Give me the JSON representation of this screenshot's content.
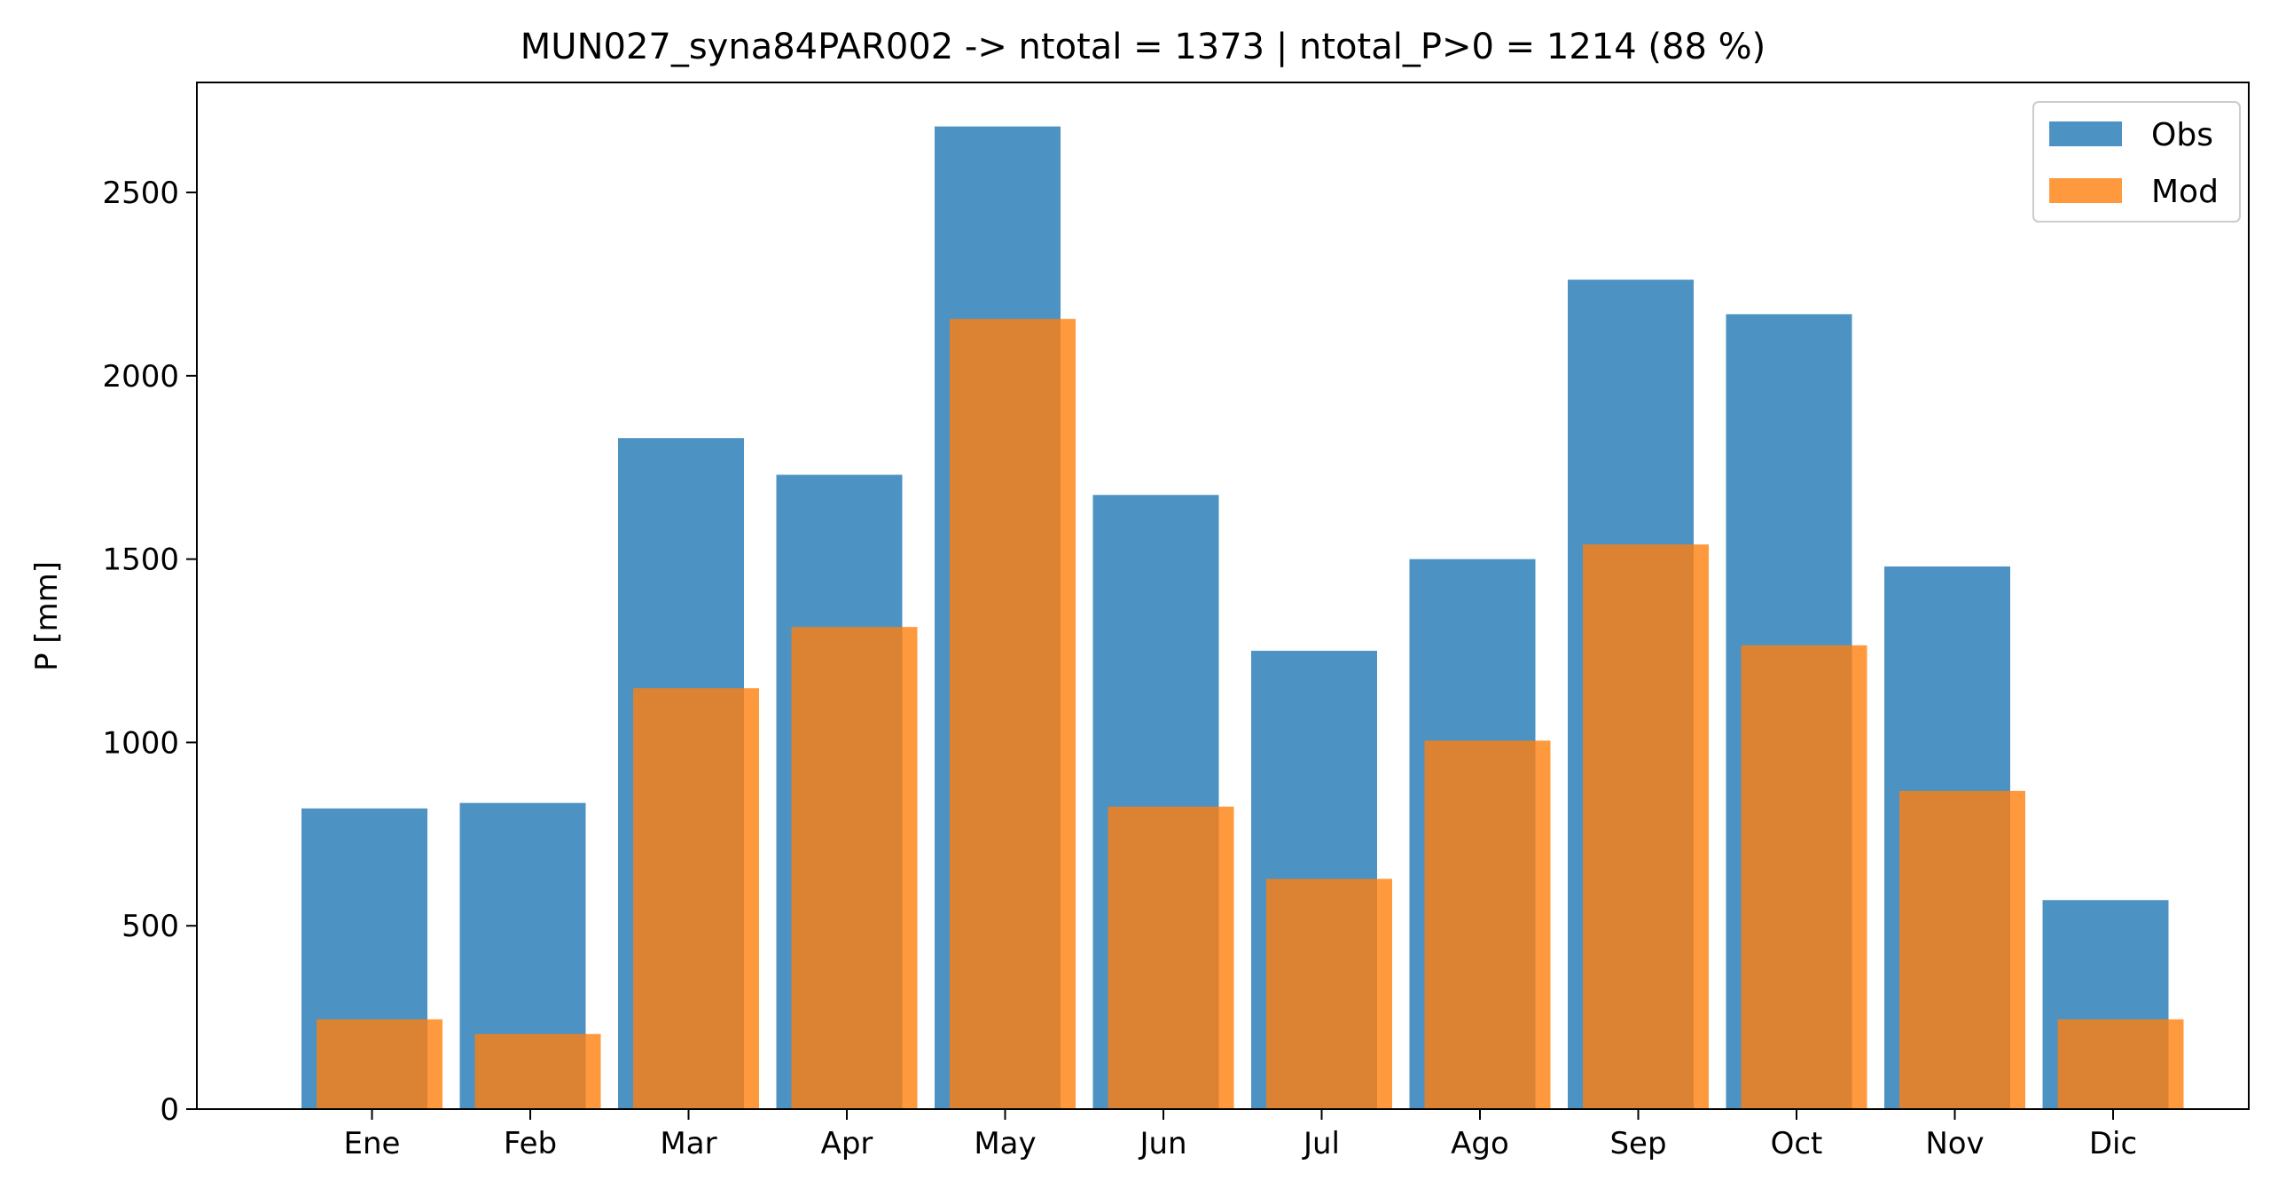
{
  "chart_data": {
    "type": "bar",
    "title": "MUN027_syna84PAR002 -> ntotal = 1373 | ntotal_P>0 = 1214 (88 %)",
    "xlabel": "",
    "ylabel": "P [mm]",
    "categories": [
      "Ene",
      "Feb",
      "Mar",
      "Apr",
      "May",
      "Jun",
      "Jul",
      "Ago",
      "Sep",
      "Oct",
      "Nov",
      "Dic"
    ],
    "series": [
      {
        "name": "Obs",
        "color": "#1f77b4",
        "values": [
          820,
          835,
          1830,
          1730,
          2680,
          1675,
          1250,
          1500,
          2262,
          2168,
          1480,
          570
        ]
      },
      {
        "name": "Mod",
        "color": "#ff7f0e",
        "values": [
          245,
          205,
          1148,
          1315,
          2155,
          825,
          628,
          1005,
          1540,
          1265,
          868,
          245
        ]
      }
    ],
    "ylim": [
      0,
      2800
    ],
    "yticks": [
      0,
      500,
      1000,
      1500,
      2000,
      2500
    ],
    "grid": false,
    "legend": "top-right"
  }
}
